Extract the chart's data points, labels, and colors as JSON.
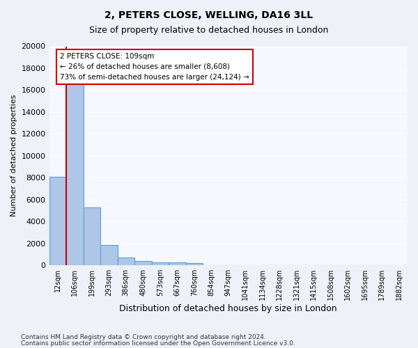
{
  "title1": "2, PETERS CLOSE, WELLING, DA16 3LL",
  "title2": "Size of property relative to detached houses in London",
  "xlabel": "Distribution of detached houses by size in London",
  "ylabel": "Number of detached properties",
  "categories": [
    "12sqm",
    "106sqm",
    "199sqm",
    "293sqm",
    "386sqm",
    "480sqm",
    "573sqm",
    "667sqm",
    "760sqm",
    "854sqm",
    "947sqm",
    "1041sqm",
    "1134sqm",
    "1228sqm",
    "1321sqm",
    "1415sqm",
    "1508sqm",
    "1602sqm",
    "1695sqm",
    "1789sqm",
    "1882sqm"
  ],
  "values": [
    8100,
    16600,
    5300,
    1850,
    700,
    370,
    280,
    230,
    190,
    0,
    0,
    0,
    0,
    0,
    0,
    0,
    0,
    0,
    0,
    0,
    0
  ],
  "bar_color": "#aec6e8",
  "bar_edge_color": "#5a9fd4",
  "annotation_text": "2 PETERS CLOSE: 109sqm\n← 26% of detached houses are smaller (8,608)\n73% of semi-detached houses are larger (24,124) →",
  "vline_color": "#cc0000",
  "box_color": "#cc0000",
  "ylim": [
    0,
    20000
  ],
  "yticks": [
    0,
    2000,
    4000,
    6000,
    8000,
    10000,
    12000,
    14000,
    16000,
    18000,
    20000
  ],
  "footer1": "Contains HM Land Registry data © Crown copyright and database right 2024.",
  "footer2": "Contains public sector information licensed under the Open Government Licence v3.0.",
  "background_color": "#eef2f8",
  "plot_bg_color": "#f5f8ff"
}
